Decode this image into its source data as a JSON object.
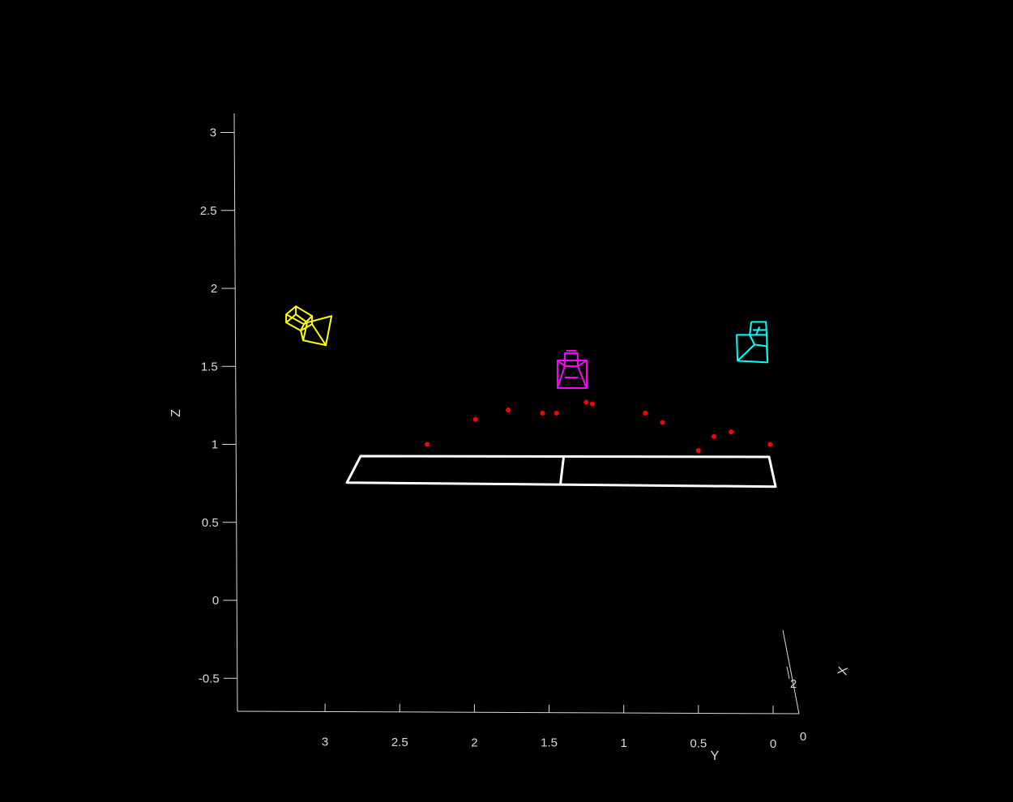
{
  "chart_data": {
    "type": "scatter",
    "title": "",
    "zlabel": "Z",
    "ylabel": "Y",
    "xlabel": "X",
    "z_ticks": [
      "-0.5",
      "0",
      "0.5",
      "1",
      "1.5",
      "2",
      "2.5",
      "3"
    ],
    "z_tick_values": [
      -0.5,
      0,
      0.5,
      1,
      1.5,
      2,
      2.5,
      3
    ],
    "y_ticks": [
      "3",
      "2.5",
      "2",
      "1.5",
      "1",
      "0.5",
      "0"
    ],
    "y_tick_values": [
      3,
      2.5,
      2,
      1.5,
      1,
      0.5,
      0
    ],
    "x_ticks": [
      "2",
      "0"
    ],
    "zlim": [
      -0.7,
      3.1
    ],
    "ylim": [
      0,
      3.4
    ],
    "grid": false,
    "background": "#000000",
    "points_color": "#ff0000",
    "points": [
      {
        "y": 2.22,
        "z": 1.0
      },
      {
        "y": 1.91,
        "z": 1.16
      },
      {
        "y": 1.7,
        "z": 1.22
      },
      {
        "y": 1.48,
        "z": 1.2
      },
      {
        "y": 1.39,
        "z": 1.2
      },
      {
        "y": 1.2,
        "z": 1.27
      },
      {
        "y": 1.16,
        "z": 1.26
      },
      {
        "y": 0.82,
        "z": 1.2
      },
      {
        "y": 0.71,
        "z": 1.14
      },
      {
        "y": 0.48,
        "z": 0.96
      },
      {
        "y": 0.38,
        "z": 1.05
      },
      {
        "y": 0.27,
        "z": 1.08
      },
      {
        "y": 0.02,
        "z": 1.0
      }
    ],
    "table": {
      "color": "#ffffff",
      "y_range": [
        0.0,
        2.74
      ],
      "z_range": [
        0.76,
        0.93
      ],
      "center_y": 1.37
    },
    "cameras": [
      {
        "color": "#ffff00",
        "fill": "#2e4a22",
        "y": 3.0,
        "z": 1.75
      },
      {
        "color": "#ff00ff",
        "fill": "#3a2a6a",
        "y": 1.29,
        "z": 1.47
      },
      {
        "color": "#00ffff",
        "fill": "#1f6e6e",
        "y": 0.14,
        "z": 1.65
      }
    ]
  }
}
